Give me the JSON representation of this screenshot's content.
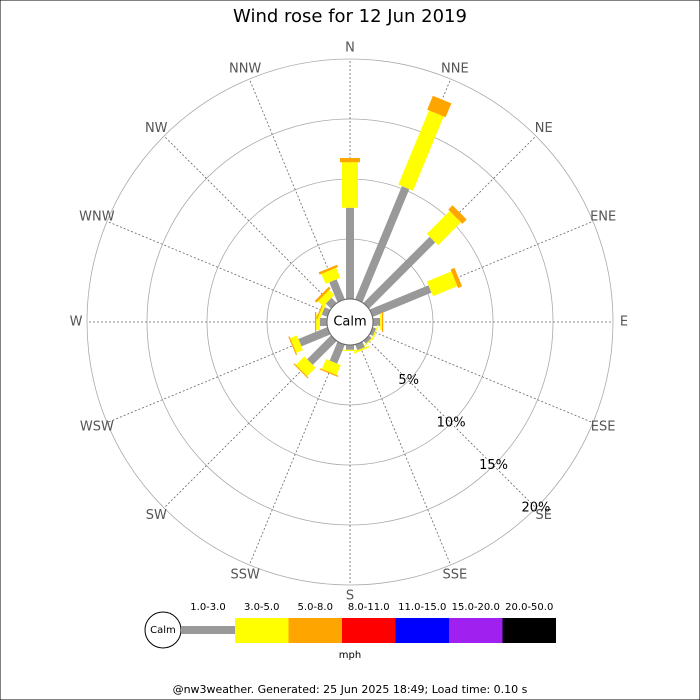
{
  "chart_data": {
    "type": "windrose",
    "title": "Wind rose for 12 Jun 2019",
    "directions": [
      "N",
      "NNE",
      "NE",
      "ENE",
      "E",
      "ESE",
      "SE",
      "SSE",
      "S",
      "SSW",
      "SW",
      "WSW",
      "W",
      "WNW",
      "NW",
      "NNW"
    ],
    "series": [
      {
        "name": "1.0-3.0",
        "color": "#999999",
        "values": [
          7.6,
          10.2,
          7.8,
          5.3,
          0.6,
          0.3,
          0.3,
          0.5,
          0.4,
          1.7,
          2.8,
          2.6,
          0.6,
          0.5,
          0.6,
          1.8
        ]
      },
      {
        "name": "3.0-5.0",
        "color": "#ffff00",
        "values": [
          3.8,
          6.7,
          2.7,
          2.2,
          0.15,
          0.1,
          0.1,
          0.15,
          0.1,
          0.9,
          1.0,
          0.6,
          0.3,
          0.2,
          0.6,
          0.9
        ]
      },
      {
        "name": "5.0-8.0",
        "color": "#ffa500",
        "values": [
          0.35,
          1.25,
          0.5,
          0.35,
          0.1,
          0,
          0,
          0,
          0,
          0.1,
          0.1,
          0.1,
          0.1,
          0.1,
          0.2,
          0.2
        ]
      },
      {
        "name": "8.0-11.0",
        "color": "#ff0000",
        "values": [
          0,
          0,
          0,
          0,
          0,
          0,
          0,
          0,
          0,
          0,
          0,
          0,
          0,
          0,
          0,
          0
        ]
      },
      {
        "name": "11.0-15.0",
        "color": "#0000ff",
        "values": [
          0,
          0,
          0,
          0,
          0,
          0,
          0,
          0,
          0,
          0,
          0,
          0,
          0,
          0,
          0,
          0
        ]
      },
      {
        "name": "15.0-20.0",
        "color": "#a020f0",
        "values": [
          0,
          0,
          0,
          0,
          0,
          0,
          0,
          0,
          0,
          0,
          0,
          0,
          0,
          0,
          0,
          0
        ]
      },
      {
        "name": "20.0-50.0",
        "color": "#000000",
        "values": [
          0,
          0,
          0,
          0,
          0,
          0,
          0,
          0,
          0,
          0,
          0,
          0,
          0,
          0,
          0,
          0
        ]
      }
    ],
    "rlim": [
      0,
      20
    ],
    "rticks": [
      {
        "value": 5,
        "label": "5%"
      },
      {
        "value": 10,
        "label": "10%"
      },
      {
        "value": 15,
        "label": "15%"
      },
      {
        "value": 20,
        "label": "20%"
      }
    ],
    "calm_label": "Calm",
    "unit": "mph",
    "footer": "@nw3weather. Generated: 25 Jun 2025 18:49; Load time: 0.10 s"
  }
}
